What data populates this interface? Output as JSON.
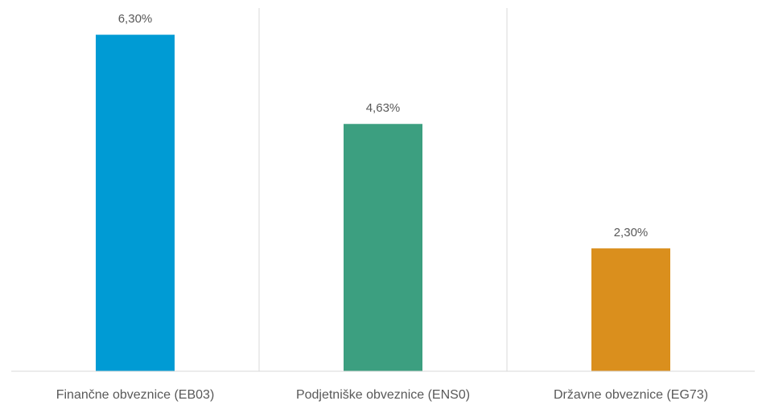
{
  "chart_data": {
    "type": "bar",
    "title": "",
    "xlabel": "",
    "ylabel": "",
    "ylim": [
      0,
      6.8
    ],
    "grid": "vertical-category-separators",
    "legend": "none",
    "categories": [
      "Finančne obveznice (EB03)",
      "Podjetniške obveznice (ENS0)",
      "Državne obveznice (EG73)"
    ],
    "values": [
      6.3,
      4.63,
      2.3
    ],
    "value_labels": [
      "6,30%",
      "4,63%",
      "2,30%"
    ],
    "colors": [
      "#009bd4",
      "#3c9f80",
      "#da8f1d"
    ]
  }
}
